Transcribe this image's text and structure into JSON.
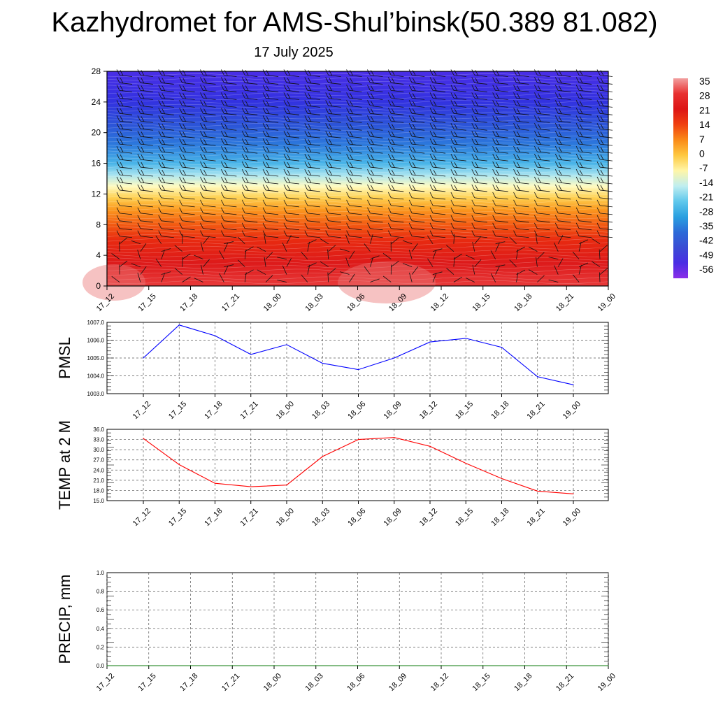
{
  "title": "Kazhydromet for AMS-Shul’binsk(50.389 81.082)",
  "subtitle": "17 July 2025",
  "x_labels": [
    "17_12",
    "17_15",
    "17_18",
    "17_21",
    "18_00",
    "18_03",
    "18_06",
    "18_09",
    "18_12",
    "18_15",
    "18_18",
    "18_21",
    "19_00"
  ],
  "colorbar": {
    "labels": [
      "35",
      "28",
      "21",
      "14",
      "7",
      "0",
      "-7",
      "-14",
      "-21",
      "-28",
      "-35",
      "-42",
      "-49",
      "-56"
    ],
    "colors": [
      "#f2a0a0",
      "#e83030",
      "#dd1515",
      "#f04010",
      "#fa8a18",
      "#fec840",
      "#fff6a8",
      "#c0eef0",
      "#60c8ec",
      "#2aa0e0",
      "#2c6ad8",
      "#3a4cd4",
      "#4a2ee4",
      "#8a2ee8"
    ]
  },
  "chart_data": [
    {
      "type": "heatmap",
      "name": "cross-section",
      "ylim": [
        0,
        28
      ],
      "yticks": [
        0,
        4,
        8,
        12,
        16,
        20,
        24,
        28
      ],
      "x": [
        "17_12",
        "17_15",
        "17_18",
        "17_21",
        "18_00",
        "18_03",
        "18_06",
        "18_09",
        "18_12",
        "18_15",
        "18_18",
        "18_21",
        "19_00"
      ],
      "color_stops_by_level": [
        {
          "level": 0,
          "color": "#e83a3a"
        },
        {
          "level": 3,
          "color": "#dd1a1a"
        },
        {
          "level": 6,
          "color": "#e82a10"
        },
        {
          "level": 8,
          "color": "#f25a12"
        },
        {
          "level": 10,
          "color": "#fb9a20"
        },
        {
          "level": 11.5,
          "color": "#fed050"
        },
        {
          "level": 13,
          "color": "#fffbc0"
        },
        {
          "level": 14.5,
          "color": "#a8e4f0"
        },
        {
          "level": 16,
          "color": "#48b4e8"
        },
        {
          "level": 18.5,
          "color": "#2c78dc"
        },
        {
          "level": 21,
          "color": "#2c54d8"
        },
        {
          "level": 24,
          "color": "#3232e0"
        },
        {
          "level": 28,
          "color": "#4a2ee6"
        }
      ]
    },
    {
      "type": "line",
      "name": "PMSL",
      "ylabel": "PMSL",
      "ylim": [
        1003.0,
        1007.0
      ],
      "yticks": [
        "1003.0",
        "1004.0",
        "1005.0",
        "1006.0",
        "1007.0"
      ],
      "x": [
        "17_12",
        "17_15",
        "17_18",
        "17_21",
        "18_00",
        "18_03",
        "18_06",
        "18_09",
        "18_12",
        "18_15",
        "18_18",
        "18_21",
        "19_00"
      ],
      "values": [
        1005.0,
        1006.85,
        1006.25,
        1005.2,
        1005.75,
        1004.7,
        1004.35,
        1005.0,
        1005.9,
        1006.1,
        1005.6,
        1003.95,
        1003.5
      ],
      "color": "#0000ff"
    },
    {
      "type": "line",
      "name": "TEMP",
      "ylabel": "TEMP at 2 M",
      "ylim": [
        15.0,
        36.0
      ],
      "yticks": [
        "15.0",
        "18.0",
        "21.0",
        "24.0",
        "27.0",
        "30.0",
        "33.0",
        "36.0"
      ],
      "x": [
        "17_12",
        "17_15",
        "17_18",
        "17_21",
        "18_00",
        "18_03",
        "18_06",
        "18_09",
        "18_12",
        "18_15",
        "18_18",
        "18_21",
        "19_00"
      ],
      "values": [
        33.3,
        25.6,
        20.1,
        19.1,
        19.6,
        28.0,
        33.0,
        33.6,
        31.0,
        26.0,
        21.5,
        17.8,
        17.0
      ],
      "color": "#ff0000"
    },
    {
      "type": "line",
      "name": "PRECIP",
      "ylabel": "PRECIP, mm",
      "ylim": [
        0.0,
        1.0
      ],
      "yticks": [
        "0.0",
        "0.2",
        "0.4",
        "0.6",
        "0.8",
        "1.0"
      ],
      "x": [
        "17_12",
        "17_15",
        "17_18",
        "17_21",
        "18_00",
        "18_03",
        "18_06",
        "18_09",
        "18_12",
        "18_15",
        "18_18",
        "18_21",
        "19_00"
      ],
      "values": [
        0,
        0,
        0,
        0,
        0,
        0,
        0,
        0,
        0,
        0,
        0,
        0,
        0
      ],
      "color": "#0a7a0a"
    }
  ]
}
